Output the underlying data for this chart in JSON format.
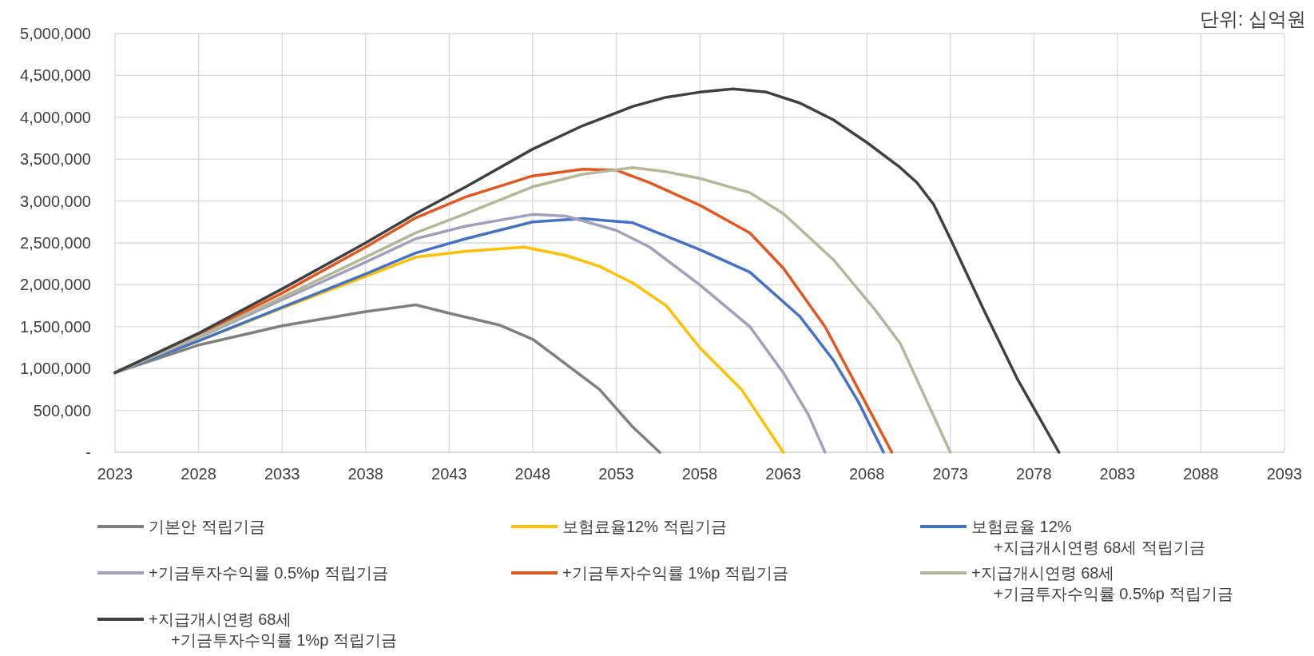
{
  "chart_data": {
    "type": "line",
    "annotations": [
      "단위: 십억원"
    ],
    "xlim": [
      2023,
      2093
    ],
    "ylim": [
      0,
      5000000
    ],
    "xticks": [
      2023,
      2028,
      2033,
      2038,
      2043,
      2048,
      2053,
      2058,
      2063,
      2068,
      2073,
      2078,
      2083,
      2088,
      2093
    ],
    "yticks": [
      {
        "value": 0,
        "label": "-"
      },
      {
        "value": 500000,
        "label": "500,000"
      },
      {
        "value": 1000000,
        "label": "1,000,000"
      },
      {
        "value": 1500000,
        "label": "1,500,000"
      },
      {
        "value": 2000000,
        "label": "2,000,000"
      },
      {
        "value": 2500000,
        "label": "2,500,000"
      },
      {
        "value": 3000000,
        "label": "3,000,000"
      },
      {
        "value": 3500000,
        "label": "3,500,000"
      },
      {
        "value": 4000000,
        "label": "4,000,000"
      },
      {
        "value": 4500000,
        "label": "4,500,000"
      },
      {
        "value": 5000000,
        "label": "5,000,000"
      }
    ],
    "grid": true,
    "legend": "bottom",
    "line_style": "solid",
    "series": [
      {
        "name": "기본안 적립기금",
        "color": "#7f7f7f",
        "x": [
          2023,
          2028,
          2033,
          2038,
          2041,
          2043,
          2046,
          2048,
          2050,
          2052,
          2054,
          2055.6
        ],
        "values": [
          950000,
          1280000,
          1510000,
          1680000,
          1760000,
          1660000,
          1520000,
          1350000,
          1050000,
          750000,
          300000,
          0
        ]
      },
      {
        "name": "보험료율12% 적립기금",
        "color": "#ffc000",
        "x": [
          2023,
          2028,
          2033,
          2038,
          2041,
          2044,
          2047.5,
          2050,
          2052,
          2054,
          2056,
          2058,
          2060.5,
          2062,
          2063
        ],
        "values": [
          950000,
          1330000,
          1720000,
          2100000,
          2330000,
          2400000,
          2450000,
          2350000,
          2220000,
          2020000,
          1750000,
          1250000,
          750000,
          300000,
          0
        ]
      },
      {
        "name": "보험료율 12%\n+지급개시연령 68세 적립기금",
        "color": "#4472c4",
        "x": [
          2023,
          2028,
          2033,
          2038,
          2041,
          2044,
          2048,
          2051,
          2054,
          2058,
          2061,
          2064,
          2066,
          2067.5,
          2069
        ],
        "values": [
          950000,
          1330000,
          1730000,
          2130000,
          2380000,
          2550000,
          2750000,
          2790000,
          2740000,
          2420000,
          2150000,
          1620000,
          1100000,
          600000,
          0
        ]
      },
      {
        "name": "+기금투자수익률 0.5%p 적립기금",
        "color": "#a0a0bc",
        "x": [
          2023,
          2028,
          2033,
          2038,
          2041,
          2044,
          2048,
          2050,
          2053,
          2055,
          2058,
          2061,
          2063,
          2064.5,
          2065.5
        ],
        "values": [
          950000,
          1370000,
          1820000,
          2270000,
          2550000,
          2700000,
          2840000,
          2820000,
          2650000,
          2450000,
          2000000,
          1500000,
          950000,
          450000,
          0
        ]
      },
      {
        "name": "+기금투자수익률 1%p 적립기금",
        "color": "#e2561f",
        "x": [
          2023,
          2028,
          2033,
          2038,
          2041,
          2044,
          2048,
          2051,
          2053,
          2055,
          2058,
          2061,
          2063,
          2065.5,
          2067.5,
          2069.5
        ],
        "values": [
          950000,
          1400000,
          1900000,
          2450000,
          2800000,
          3050000,
          3300000,
          3380000,
          3370000,
          3220000,
          2950000,
          2620000,
          2200000,
          1500000,
          750000,
          0
        ]
      },
      {
        "name": "+지급개시연령 68세\n+기금투자수익률 0.5%p 적립기금",
        "color": "#b4b898",
        "x": [
          2023,
          2028,
          2033,
          2038,
          2041,
          2044,
          2048,
          2051,
          2054,
          2056,
          2058,
          2061,
          2063,
          2066,
          2068.5,
          2070,
          2071.5,
          2073
        ],
        "values": [
          950000,
          1380000,
          1850000,
          2330000,
          2620000,
          2850000,
          3170000,
          3320000,
          3400000,
          3350000,
          3270000,
          3100000,
          2850000,
          2300000,
          1700000,
          1300000,
          650000,
          0
        ]
      },
      {
        "name": "+지급개시연령 68세\n+기금투자수익률 1%p 적립기금",
        "color": "#404040",
        "x": [
          2023,
          2028,
          2033,
          2038,
          2041,
          2044,
          2048,
          2051,
          2054,
          2056,
          2058,
          2060,
          2062,
          2064,
          2066,
          2068,
          2070,
          2071,
          2072,
          2073,
          2075,
          2077,
          2079.5
        ],
        "values": [
          950000,
          1420000,
          1950000,
          2500000,
          2850000,
          3170000,
          3620000,
          3900000,
          4130000,
          4240000,
          4300000,
          4340000,
          4300000,
          4170000,
          3970000,
          3700000,
          3400000,
          3220000,
          2960000,
          2550000,
          1700000,
          880000,
          0
        ]
      }
    ]
  }
}
